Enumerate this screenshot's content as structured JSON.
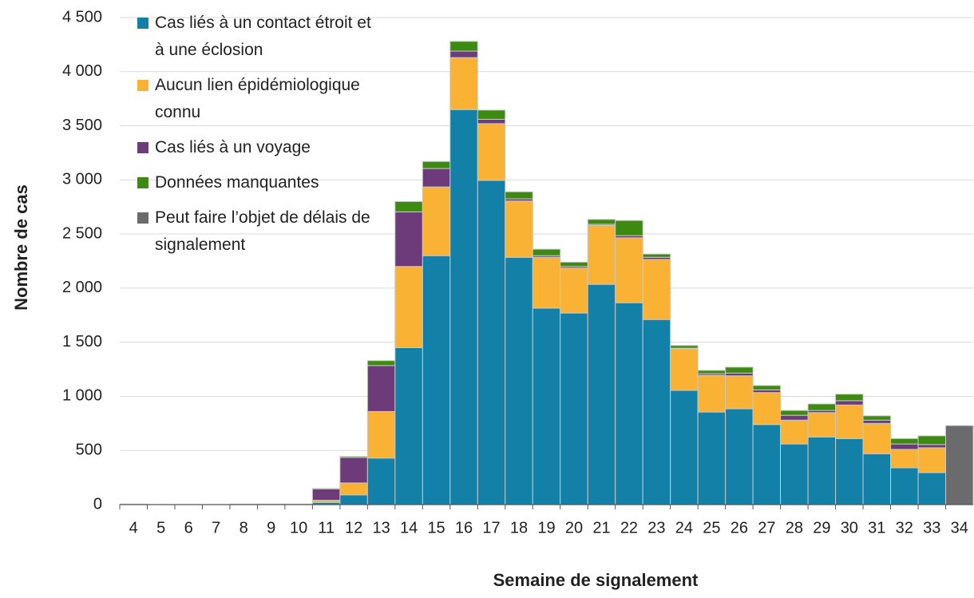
{
  "chart_data": {
    "type": "stacked_bar",
    "x_label": "Semaine de signalement",
    "y_label": "Nombre de cas",
    "categories": [
      "4",
      "5",
      "6",
      "7",
      "8",
      "9",
      "10",
      "11",
      "12",
      "13",
      "14",
      "15",
      "16",
      "17",
      "18",
      "19",
      "20",
      "21",
      "22",
      "23",
      "24",
      "25",
      "26",
      "27",
      "28",
      "29",
      "30",
      "31",
      "32",
      "33",
      "34"
    ],
    "series": [
      {
        "name": "Cas liés à un contact étroit et à une éclosion",
        "color": "#1380a8",
        "values": [
          0,
          0,
          0,
          0,
          0,
          0,
          0,
          20,
          90,
          430,
          1450,
          2300,
          3650,
          2995,
          2285,
          1815,
          1770,
          2035,
          1865,
          1710,
          1055,
          855,
          885,
          740,
          560,
          625,
          610,
          470,
          340,
          295,
          null
        ]
      },
      {
        "name": "Aucun lien épidémiologique connu",
        "color": "#f9b233",
        "values": [
          0,
          0,
          0,
          0,
          0,
          0,
          0,
          20,
          110,
          430,
          750,
          635,
          480,
          525,
          520,
          470,
          415,
          545,
          600,
          555,
          385,
          340,
          305,
          295,
          220,
          225,
          310,
          280,
          170,
          230,
          null
        ]
      },
      {
        "name": "Cas liés à un voyage",
        "color": "#6d3a7a",
        "values": [
          5,
          0,
          0,
          0,
          5,
          5,
          5,
          105,
          235,
          425,
          505,
          170,
          60,
          40,
          20,
          15,
          15,
          10,
          20,
          20,
          5,
          15,
          25,
          25,
          45,
          20,
          40,
          30,
          50,
          30,
          null
        ]
      },
      {
        "name": "Données manquantes",
        "color": "#3c8a0f",
        "values": [
          0,
          0,
          0,
          0,
          0,
          0,
          0,
          5,
          10,
          45,
          95,
          65,
          90,
          85,
          65,
          60,
          40,
          45,
          140,
          30,
          25,
          30,
          55,
          40,
          45,
          60,
          60,
          40,
          50,
          80,
          null
        ]
      },
      {
        "name": "Peut faire l’objet de délais de signalement",
        "color": "#6b6b6e",
        "values": [
          null,
          null,
          null,
          null,
          null,
          null,
          null,
          null,
          null,
          null,
          null,
          null,
          null,
          null,
          null,
          null,
          null,
          null,
          null,
          null,
          null,
          null,
          null,
          null,
          null,
          null,
          null,
          null,
          null,
          null,
          730
        ]
      }
    ],
    "ylim": [
      0,
      4500
    ],
    "yticks": [
      0,
      500,
      {
        "value": 1000,
        "label": "1 000"
      },
      {
        "value": 1500,
        "label": "1 500"
      },
      {
        "value": 2000,
        "label": "2 000"
      },
      {
        "value": 2500,
        "label": "2 500"
      },
      {
        "value": 3000,
        "label": "3 000"
      },
      {
        "value": 3500,
        "label": "3 500"
      },
      {
        "value": 4000,
        "label": "4 000"
      },
      {
        "value": 4500,
        "label": "4 500"
      }
    ],
    "grid": true
  }
}
